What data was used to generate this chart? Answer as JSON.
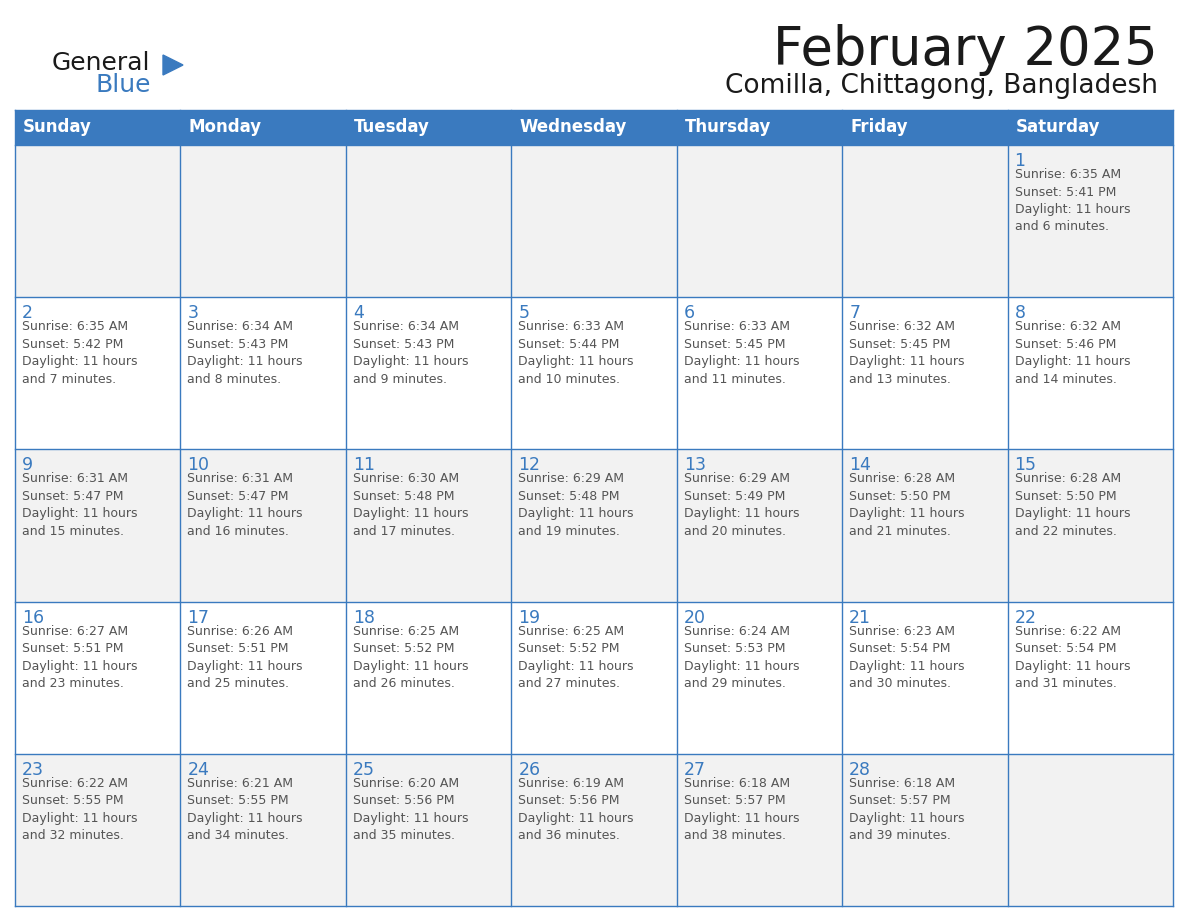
{
  "title": "February 2025",
  "subtitle": "Comilla, Chittagong, Bangladesh",
  "header_bg": "#336791",
  "header_bg_hex": "#3a7abf",
  "cell_bg": "#FFFFFF",
  "alt_row_bg": "#f2f2f2",
  "cell_border_color": "#3a7abf",
  "day_number_color": "#3a7abf",
  "cell_text_color": "#555555",
  "header_text_color": "#FFFFFF",
  "days_of_week": [
    "Sunday",
    "Monday",
    "Tuesday",
    "Wednesday",
    "Thursday",
    "Friday",
    "Saturday"
  ],
  "calendar_data": [
    [
      {
        "day": null,
        "info": ""
      },
      {
        "day": null,
        "info": ""
      },
      {
        "day": null,
        "info": ""
      },
      {
        "day": null,
        "info": ""
      },
      {
        "day": null,
        "info": ""
      },
      {
        "day": null,
        "info": ""
      },
      {
        "day": 1,
        "sunrise": "6:35 AM",
        "sunset": "5:41 PM",
        "daylight": "11 hours and 6 minutes."
      }
    ],
    [
      {
        "day": 2,
        "sunrise": "6:35 AM",
        "sunset": "5:42 PM",
        "daylight": "11 hours and 7 minutes."
      },
      {
        "day": 3,
        "sunrise": "6:34 AM",
        "sunset": "5:43 PM",
        "daylight": "11 hours and 8 minutes."
      },
      {
        "day": 4,
        "sunrise": "6:34 AM",
        "sunset": "5:43 PM",
        "daylight": "11 hours and 9 minutes."
      },
      {
        "day": 5,
        "sunrise": "6:33 AM",
        "sunset": "5:44 PM",
        "daylight": "11 hours and 10 minutes."
      },
      {
        "day": 6,
        "sunrise": "6:33 AM",
        "sunset": "5:45 PM",
        "daylight": "11 hours and 11 minutes."
      },
      {
        "day": 7,
        "sunrise": "6:32 AM",
        "sunset": "5:45 PM",
        "daylight": "11 hours and 13 minutes."
      },
      {
        "day": 8,
        "sunrise": "6:32 AM",
        "sunset": "5:46 PM",
        "daylight": "11 hours and 14 minutes."
      }
    ],
    [
      {
        "day": 9,
        "sunrise": "6:31 AM",
        "sunset": "5:47 PM",
        "daylight": "11 hours and 15 minutes."
      },
      {
        "day": 10,
        "sunrise": "6:31 AM",
        "sunset": "5:47 PM",
        "daylight": "11 hours and 16 minutes."
      },
      {
        "day": 11,
        "sunrise": "6:30 AM",
        "sunset": "5:48 PM",
        "daylight": "11 hours and 17 minutes."
      },
      {
        "day": 12,
        "sunrise": "6:29 AM",
        "sunset": "5:48 PM",
        "daylight": "11 hours and 19 minutes."
      },
      {
        "day": 13,
        "sunrise": "6:29 AM",
        "sunset": "5:49 PM",
        "daylight": "11 hours and 20 minutes."
      },
      {
        "day": 14,
        "sunrise": "6:28 AM",
        "sunset": "5:50 PM",
        "daylight": "11 hours and 21 minutes."
      },
      {
        "day": 15,
        "sunrise": "6:28 AM",
        "sunset": "5:50 PM",
        "daylight": "11 hours and 22 minutes."
      }
    ],
    [
      {
        "day": 16,
        "sunrise": "6:27 AM",
        "sunset": "5:51 PM",
        "daylight": "11 hours and 23 minutes."
      },
      {
        "day": 17,
        "sunrise": "6:26 AM",
        "sunset": "5:51 PM",
        "daylight": "11 hours and 25 minutes."
      },
      {
        "day": 18,
        "sunrise": "6:25 AM",
        "sunset": "5:52 PM",
        "daylight": "11 hours and 26 minutes."
      },
      {
        "day": 19,
        "sunrise": "6:25 AM",
        "sunset": "5:52 PM",
        "daylight": "11 hours and 27 minutes."
      },
      {
        "day": 20,
        "sunrise": "6:24 AM",
        "sunset": "5:53 PM",
        "daylight": "11 hours and 29 minutes."
      },
      {
        "day": 21,
        "sunrise": "6:23 AM",
        "sunset": "5:54 PM",
        "daylight": "11 hours and 30 minutes."
      },
      {
        "day": 22,
        "sunrise": "6:22 AM",
        "sunset": "5:54 PM",
        "daylight": "11 hours and 31 minutes."
      }
    ],
    [
      {
        "day": 23,
        "sunrise": "6:22 AM",
        "sunset": "5:55 PM",
        "daylight": "11 hours and 32 minutes."
      },
      {
        "day": 24,
        "sunrise": "6:21 AM",
        "sunset": "5:55 PM",
        "daylight": "11 hours and 34 minutes."
      },
      {
        "day": 25,
        "sunrise": "6:20 AM",
        "sunset": "5:56 PM",
        "daylight": "11 hours and 35 minutes."
      },
      {
        "day": 26,
        "sunrise": "6:19 AM",
        "sunset": "5:56 PM",
        "daylight": "11 hours and 36 minutes."
      },
      {
        "day": 27,
        "sunrise": "6:18 AM",
        "sunset": "5:57 PM",
        "daylight": "11 hours and 38 minutes."
      },
      {
        "day": 28,
        "sunrise": "6:18 AM",
        "sunset": "5:57 PM",
        "daylight": "11 hours and 39 minutes."
      },
      {
        "day": null,
        "info": ""
      }
    ]
  ],
  "figsize": [
    11.88,
    9.18
  ],
  "dpi": 100
}
